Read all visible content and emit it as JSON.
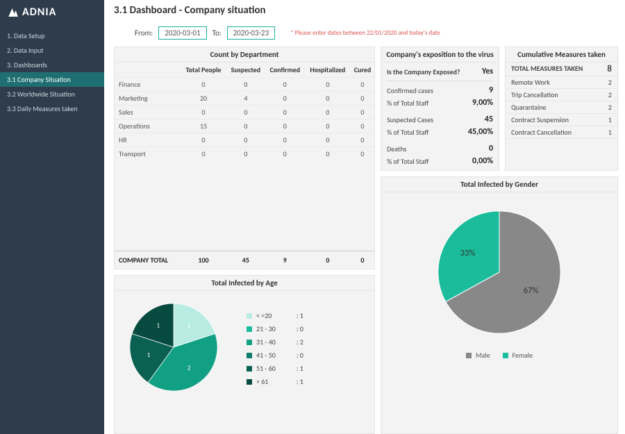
{
  "brand": "ADNIA",
  "page_title": "3.1 Dashboard - Company situation",
  "nav": {
    "items": [
      {
        "label": "1. Data Setup",
        "active": false
      },
      {
        "label": "2. Data Input",
        "active": false
      },
      {
        "label": "3. Dashboards",
        "active": false
      },
      {
        "label": "3.1 Company Situation",
        "active": true
      },
      {
        "label": "3.2 Worldwide Situation",
        "active": false
      },
      {
        "label": "3.3 Daily Measures taken",
        "active": false
      }
    ]
  },
  "dates": {
    "from_label": "From:",
    "from_value": "2020-03-01",
    "to_label": "To:",
    "to_value": "2020-03-23",
    "warning": "* Please enter dates between 22/01/2020 and today's date"
  },
  "dept_table": {
    "title": "Count by Department",
    "columns": [
      "",
      "Total People",
      "Suspected",
      "Confirmed",
      "Hospitalized",
      "Cured"
    ],
    "rows": [
      [
        "Finance",
        "0",
        "0",
        "0",
        "0",
        "0"
      ],
      [
        "Marketing",
        "20",
        "4",
        "0",
        "0",
        "0"
      ],
      [
        "Sales",
        "0",
        "0",
        "0",
        "0",
        "0"
      ],
      [
        "Operations",
        "15",
        "0",
        "0",
        "0",
        "0"
      ],
      [
        "HR",
        "0",
        "0",
        "0",
        "0",
        "0"
      ],
      [
        "Transport",
        "0",
        "0",
        "0",
        "0",
        "0"
      ]
    ],
    "total_label": "COMPANY TOTAL",
    "totals": [
      "100",
      "45",
      "9",
      "0",
      "0"
    ]
  },
  "age_chart": {
    "title": "Total Infected by Age",
    "type": "pie",
    "slices": [
      {
        "label": "< =20",
        "value": 1,
        "color": "#b8ece3"
      },
      {
        "label": "21 - 30",
        "value": 0,
        "color": "#1abc9c"
      },
      {
        "label": "31 - 40",
        "value": 2,
        "color": "#12a085"
      },
      {
        "label": "41 - 50",
        "value": 0,
        "color": "#0e7e6a"
      },
      {
        "label": "51 - 60",
        "value": 1,
        "color": "#0a6152"
      },
      {
        "label": "> 61",
        "value": 1,
        "color": "#074a3f"
      }
    ],
    "legend_labels": [
      "< =20",
      "21 - 30",
      "31 - 40",
      "41 - 50",
      "51 - 60",
      "> 61"
    ],
    "legend_values": [
      ": 1",
      ": 0",
      ": 2",
      ": 0",
      ": 1",
      ": 1"
    ],
    "slice_data_labels": [
      "1",
      "2",
      "1",
      "1"
    ]
  },
  "exposition": {
    "title": "Company's exposition to the virus",
    "q_label": "Is the Company Exposed?",
    "q_value": "Yes",
    "rows": [
      {
        "label": "Confirmed cases",
        "value": "9"
      },
      {
        "label": "% of Total Staff",
        "value": "9,00%"
      },
      {
        "label": "",
        "value": ""
      },
      {
        "label": "Suspected Cases",
        "value": "45"
      },
      {
        "label": "% of Total Staff",
        "value": "45,00%"
      },
      {
        "label": "",
        "value": ""
      },
      {
        "label": "Deaths",
        "value": "0"
      },
      {
        "label": "% of Total Staff",
        "value": "0,00%"
      }
    ]
  },
  "measures": {
    "title": "Cumulative Measures taken",
    "head_label": "TOTAL MEASURES TAKEN",
    "head_value": "8",
    "rows": [
      {
        "label": "Remote Work",
        "value": "2"
      },
      {
        "label": "Trip Cancellation",
        "value": "2"
      },
      {
        "label": "Quarantaine",
        "value": "2"
      },
      {
        "label": "Contract Suspension",
        "value": "1"
      },
      {
        "label": "Contract Cancellation",
        "value": "1"
      }
    ]
  },
  "gender_chart": {
    "title": "Total Infected by Gender",
    "type": "pie",
    "slices": [
      {
        "label": "Male",
        "value": 67,
        "color": "#888888",
        "pct": "67%"
      },
      {
        "label": "Female",
        "value": 33,
        "color": "#1abc9c",
        "pct": "33%"
      }
    ],
    "legend": [
      {
        "label": "Male",
        "color": "#888888"
      },
      {
        "label": "Female",
        "color": "#1abc9c"
      }
    ]
  },
  "colors": {
    "sidebar_bg": "#2e3c4b",
    "accent": "#1abc9c",
    "panel_bg": "#f3f3f3",
    "warn": "#d9534f"
  }
}
